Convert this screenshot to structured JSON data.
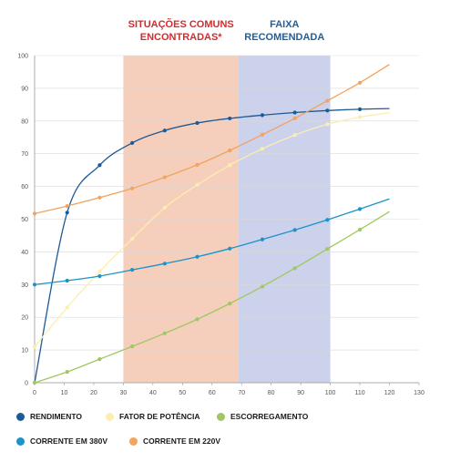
{
  "chart_data": {
    "type": "line",
    "xlim": [
      0,
      130
    ],
    "ylim": [
      0,
      100
    ],
    "x_ticks": [
      0,
      10,
      20,
      30,
      40,
      50,
      60,
      70,
      80,
      90,
      100,
      110,
      120,
      130
    ],
    "y_ticks": [
      0,
      10,
      20,
      30,
      40,
      50,
      60,
      70,
      80,
      90,
      100
    ],
    "grid": "horizontal",
    "legend": "bottom",
    "bands": [
      {
        "label_lines": [
          "SITUAÇÕES COMUNS",
          "ENCONTRADAS*"
        ],
        "x_range": [
          30,
          69
        ],
        "fill": "#f6cfbc",
        "label_color": "#d12d2f"
      },
      {
        "label_lines": [
          "FAIXA",
          "RECOMENDADA"
        ],
        "x_range": [
          69,
          100
        ],
        "fill": "#ccd1ec",
        "label_color": "#1f5f9a"
      }
    ],
    "series": [
      {
        "name": "RENDIMENTO",
        "color": "#1d5a96",
        "points": [
          [
            0,
            0
          ],
          [
            11,
            52
          ],
          [
            22,
            66.5
          ],
          [
            33,
            73.3
          ],
          [
            44,
            77.1
          ],
          [
            55,
            79.4
          ],
          [
            66,
            80.8
          ],
          [
            77,
            81.8
          ],
          [
            88,
            82.6
          ],
          [
            99,
            83.2
          ],
          [
            110,
            83.6
          ],
          [
            120,
            83.8
          ]
        ],
        "markers": [
          [
            11,
            52
          ],
          [
            22,
            66.5
          ],
          [
            33,
            73.3
          ],
          [
            44,
            77.1
          ],
          [
            55,
            79.4
          ],
          [
            66,
            80.8
          ],
          [
            77,
            81.8
          ],
          [
            88,
            82.6
          ],
          [
            99,
            83.2
          ],
          [
            110,
            83.6
          ]
        ]
      },
      {
        "name": "FATOR DE POTÊNCIA",
        "color": "#fbeeaf",
        "points": [
          [
            0,
            11
          ],
          [
            11,
            23
          ],
          [
            22,
            34
          ],
          [
            33,
            44
          ],
          [
            44,
            53.5
          ],
          [
            55,
            60.5
          ],
          [
            66,
            66.5
          ],
          [
            77,
            71.5
          ],
          [
            88,
            75.7
          ],
          [
            99,
            79
          ],
          [
            110,
            81.2
          ],
          [
            120,
            82.5
          ]
        ],
        "markers": [
          [
            0,
            11
          ],
          [
            11,
            23
          ],
          [
            22,
            34
          ],
          [
            33,
            44
          ],
          [
            44,
            53.5
          ],
          [
            55,
            60.5
          ],
          [
            66,
            66.5
          ],
          [
            77,
            71.5
          ],
          [
            88,
            75.7
          ],
          [
            99,
            79
          ],
          [
            110,
            81.2
          ]
        ]
      },
      {
        "name": "ESCORREGAMENTO",
        "color": "#9fc862",
        "points": [
          [
            0,
            0
          ],
          [
            11,
            3.3
          ],
          [
            22,
            7.2
          ],
          [
            33,
            11.1
          ],
          [
            44,
            15.1
          ],
          [
            55,
            19.4
          ],
          [
            66,
            24.2
          ],
          [
            77,
            29.4
          ],
          [
            88,
            35
          ],
          [
            99,
            40.9
          ],
          [
            110,
            46.8
          ],
          [
            120,
            52.3
          ]
        ],
        "markers": [
          [
            0,
            0
          ],
          [
            11,
            3.3
          ],
          [
            22,
            7.2
          ],
          [
            33,
            11.1
          ],
          [
            44,
            15.1
          ],
          [
            55,
            19.4
          ],
          [
            66,
            24.2
          ],
          [
            77,
            29.4
          ],
          [
            88,
            35
          ],
          [
            99,
            40.9
          ],
          [
            110,
            46.8
          ]
        ]
      },
      {
        "name": "CORRENTE EM 380V",
        "color": "#1b93c8",
        "points": [
          [
            0,
            30
          ],
          [
            11,
            31.2
          ],
          [
            22,
            32.6
          ],
          [
            33,
            34.5
          ],
          [
            44,
            36.4
          ],
          [
            55,
            38.5
          ],
          [
            66,
            41
          ],
          [
            77,
            43.8
          ],
          [
            88,
            46.7
          ],
          [
            99,
            49.8
          ],
          [
            110,
            53.1
          ],
          [
            120,
            56.2
          ]
        ],
        "markers": [
          [
            0,
            30
          ],
          [
            11,
            31.2
          ],
          [
            22,
            32.6
          ],
          [
            33,
            34.5
          ],
          [
            44,
            36.4
          ],
          [
            55,
            38.5
          ],
          [
            66,
            41
          ],
          [
            77,
            43.8
          ],
          [
            88,
            46.7
          ],
          [
            99,
            49.8
          ],
          [
            110,
            53.1
          ]
        ]
      },
      {
        "name": "CORRENTE EM 220V",
        "color": "#f4a25c",
        "points": [
          [
            0,
            51.7
          ],
          [
            11,
            54
          ],
          [
            22,
            56.6
          ],
          [
            33,
            59.4
          ],
          [
            44,
            62.8
          ],
          [
            55,
            66.6
          ],
          [
            66,
            71
          ],
          [
            77,
            75.8
          ],
          [
            88,
            80.8
          ],
          [
            99,
            86.2
          ],
          [
            110,
            91.7
          ],
          [
            120,
            97.3
          ]
        ],
        "markers": [
          [
            0,
            51.7
          ],
          [
            11,
            54
          ],
          [
            22,
            56.6
          ],
          [
            33,
            59.4
          ],
          [
            44,
            62.8
          ],
          [
            55,
            66.6
          ],
          [
            66,
            71
          ],
          [
            77,
            75.8
          ],
          [
            88,
            80.8
          ],
          [
            99,
            86.2
          ],
          [
            110,
            91.7
          ]
        ]
      }
    ]
  }
}
